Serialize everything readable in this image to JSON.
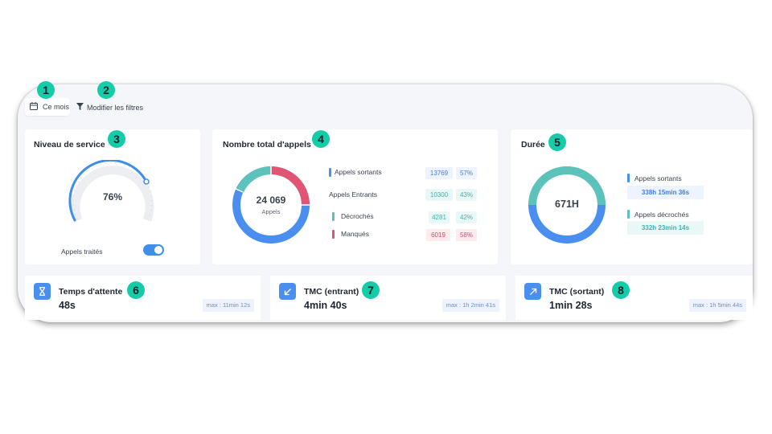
{
  "badges": [
    "1",
    "2",
    "3",
    "4",
    "5",
    "6",
    "7",
    "8"
  ],
  "toolbar": {
    "month_label": "Ce mois",
    "filter_label": "Modifier les filtres"
  },
  "service": {
    "title": "Niveau de service",
    "value_label": "76%",
    "value": 76,
    "toggle_label": "Appels traités",
    "toggle_on": true
  },
  "calls": {
    "title": "Nombre total d'appels",
    "total": "24 069",
    "total_label": "Appels",
    "rows": [
      {
        "label": "Appels sortants",
        "count": "13769",
        "pct": "57%"
      },
      {
        "label": "Appels Entrants",
        "count": "10300",
        "pct": "43%"
      },
      {
        "label": "Décrochés",
        "count": "4281",
        "pct": "42%"
      },
      {
        "label": "Manqués",
        "count": "6019",
        "pct": "58%"
      }
    ],
    "colors": {
      "outgoing": "#4a8ff0",
      "answered": "#5cc3bb",
      "missed": "#e15574"
    }
  },
  "duration": {
    "title": "Durée",
    "total": "671H",
    "rows": [
      {
        "label": "Appels sortants",
        "value": "338h 15min 36s"
      },
      {
        "label": "Appels décrochés",
        "value": "332h 23min 14s"
      }
    ]
  },
  "stats": [
    {
      "title": "Temps d'attente",
      "value": "48s",
      "max": "max : 11min 12s",
      "icon": "hourglass-icon"
    },
    {
      "title": "TMC (entrant)",
      "value": "4min 40s",
      "max": "max : 1h 2min 41s",
      "icon": "arrow-down-left-icon"
    },
    {
      "title": "TMC (sortant)",
      "value": "1min 28s",
      "max": "max : 1h 5min 44s",
      "icon": "arrow-up-right-icon"
    }
  ]
}
